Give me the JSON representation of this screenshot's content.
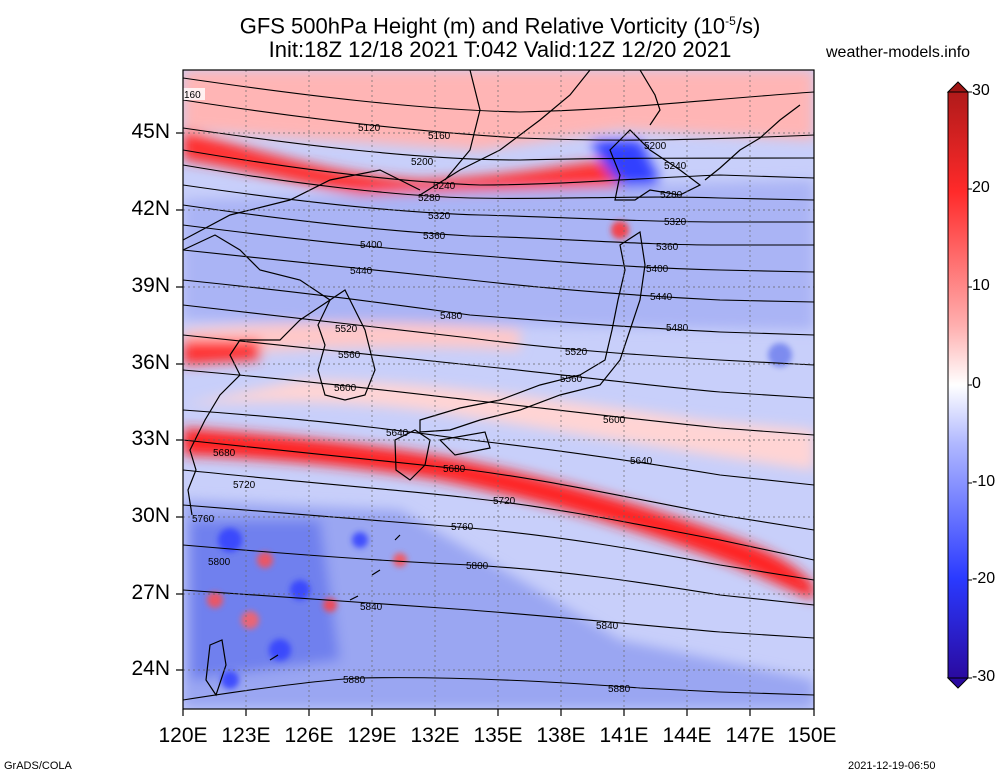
{
  "title": {
    "line1_a": "GFS 500hPa Height (m) and Relative Vorticity (10",
    "line1_sup": "-5",
    "line1_b": "/s)",
    "line2": "Init:18Z 12/18 2021 T:042 Valid:12Z 12/20 2021"
  },
  "site_label": "weather-models.info",
  "footer": {
    "left": "GrADS/COLA",
    "right": "2021-12-19-06:50"
  },
  "axes": {
    "lat_labels": [
      "45N",
      "42N",
      "39N",
      "36N",
      "33N",
      "30N",
      "27N",
      "24N"
    ],
    "lat_values": [
      45,
      42,
      39,
      36,
      33,
      30,
      27,
      24
    ],
    "lon_labels": [
      "120E",
      "123E",
      "126E",
      "129E",
      "132E",
      "135E",
      "138E",
      "141E",
      "144E",
      "147E",
      "150E"
    ],
    "lon_values": [
      120,
      123,
      126,
      129,
      132,
      135,
      138,
      141,
      144,
      147,
      150
    ],
    "lon_range": [
      120,
      150
    ],
    "lat_range": [
      22.5,
      47.5
    ]
  },
  "colorbar": {
    "labels": [
      "30",
      "20",
      "10",
      "0",
      "-10",
      "-20",
      "-30"
    ],
    "values": [
      30,
      20,
      10,
      0,
      -10,
      -20,
      -30
    ],
    "colors": {
      "pos_max": "#b01a1a",
      "pos_mid": "#ff2a2a",
      "pos_low": "#ff9a9a",
      "zero": "#ffffff",
      "neg_low": "#9aa8ff",
      "neg_mid": "#2a3aff",
      "neg_max": "#2a0aa0"
    }
  },
  "contours": [
    {
      "value": 5120,
      "label": "5120"
    },
    {
      "value": 5160,
      "label": "5160"
    },
    {
      "value": 5200,
      "label": "5200"
    },
    {
      "value": 5240,
      "label": "5240"
    },
    {
      "value": 5280,
      "label": "5280"
    },
    {
      "value": 5320,
      "label": "5320"
    },
    {
      "value": 5360,
      "label": "5360"
    },
    {
      "value": 5400,
      "label": "5400"
    },
    {
      "value": 5440,
      "label": "5440"
    },
    {
      "value": 5480,
      "label": "5480"
    },
    {
      "value": 5520,
      "label": "5520"
    },
    {
      "value": 5560,
      "label": "5560"
    },
    {
      "value": 5600,
      "label": "5600"
    },
    {
      "value": 5640,
      "label": "5640"
    },
    {
      "value": 5680,
      "label": "5680"
    },
    {
      "value": 5720,
      "label": "5720"
    },
    {
      "value": 5760,
      "label": "5760"
    },
    {
      "value": 5800,
      "label": "5800"
    },
    {
      "value": 5840,
      "label": "5840"
    },
    {
      "value": 5880,
      "label": "5880"
    }
  ],
  "edge_label": "160"
}
